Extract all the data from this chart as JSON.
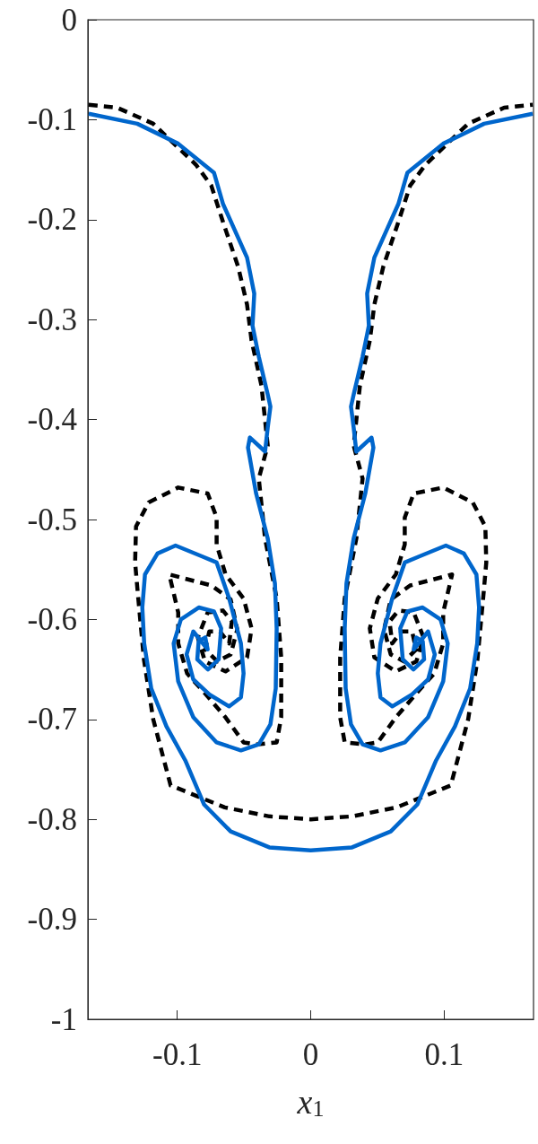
{
  "chart_data": {
    "type": "line",
    "xlabel": "x$_{1}$",
    "xlim": [
      -0.167,
      0.167
    ],
    "xticks": [
      -0.1,
      0,
      0.1
    ],
    "ylim": [
      -1,
      0
    ],
    "yticks": [
      -1,
      -0.9,
      -0.8,
      -0.7,
      -0.6,
      -0.5,
      -0.4,
      -0.3,
      -0.2,
      -0.1,
      0
    ],
    "grid": false,
    "marker": "none",
    "series": [
      {
        "color": "#0066cc",
        "line_style": "solid",
        "x": [
          -0.1664,
          -0.13,
          -0.0993,
          -0.0725,
          -0.0658,
          -0.0477,
          -0.0423,
          -0.0436,
          -0.0389,
          -0.0322,
          -0.0302,
          -0.0322,
          -0.0342,
          -0.0456,
          -0.047,
          -0.0409,
          -0.0322,
          -0.0268,
          -0.0255,
          -0.0262,
          -0.0302,
          -0.0389,
          -0.0523,
          -0.0705,
          -0.0879,
          -0.0993,
          -0.1027,
          -0.0973,
          -0.0839,
          -0.0725,
          -0.0671,
          -0.069,
          -0.077,
          -0.085,
          -0.084,
          -0.079,
          -0.0772,
          -0.088,
          -0.093,
          -0.088,
          -0.076,
          -0.0611,
          -0.0523,
          -0.0503,
          -0.0523,
          -0.0611,
          -0.0705,
          -0.0812,
          -0.1013,
          -0.1148,
          -0.1242,
          -0.1262,
          -0.1248,
          -0.1195,
          -0.1081,
          -0.094,
          -0.08,
          -0.06,
          -0.031,
          0,
          0.031,
          0.06,
          0.08,
          0.094,
          0.1081,
          0.1195,
          0.1248,
          0.1262,
          0.1242,
          0.1148,
          0.1013,
          0.0812,
          0.0705,
          0.0611,
          0.0523,
          0.0503,
          0.0523,
          0.0611,
          0.076,
          0.088,
          0.093,
          0.088,
          0.0772,
          0.079,
          0.084,
          0.085,
          0.077,
          0.069,
          0.0671,
          0.0725,
          0.0839,
          0.0973,
          0.1027,
          0.0993,
          0.0879,
          0.0705,
          0.0523,
          0.0389,
          0.0302,
          0.0262,
          0.0255,
          0.0268,
          0.0322,
          0.0409,
          0.047,
          0.0456,
          0.0342,
          0.0322,
          0.0302,
          0.0322,
          0.0389,
          0.0436,
          0.0423,
          0.0477,
          0.0658,
          0.0725,
          0.0993,
          0.13,
          0.1664
        ],
        "values": [
          -0.094,
          -0.104,
          -0.124,
          -0.153,
          -0.184,
          -0.238,
          -0.274,
          -0.306,
          -0.337,
          -0.375,
          -0.387,
          -0.408,
          -0.432,
          -0.418,
          -0.428,
          -0.474,
          -0.519,
          -0.564,
          -0.609,
          -0.669,
          -0.705,
          -0.725,
          -0.731,
          -0.723,
          -0.698,
          -0.662,
          -0.624,
          -0.6,
          -0.588,
          -0.592,
          -0.609,
          -0.64,
          -0.65,
          -0.64,
          -0.622,
          -0.618,
          -0.63,
          -0.612,
          -0.635,
          -0.66,
          -0.675,
          -0.687,
          -0.678,
          -0.654,
          -0.624,
          -0.579,
          -0.543,
          -0.537,
          -0.526,
          -0.534,
          -0.555,
          -0.588,
          -0.624,
          -0.669,
          -0.707,
          -0.741,
          -0.785,
          -0.812,
          -0.828,
          -0.831,
          -0.828,
          -0.812,
          -0.785,
          -0.741,
          -0.707,
          -0.669,
          -0.624,
          -0.588,
          -0.555,
          -0.534,
          -0.526,
          -0.537,
          -0.543,
          -0.579,
          -0.624,
          -0.654,
          -0.678,
          -0.687,
          -0.675,
          -0.66,
          -0.635,
          -0.612,
          -0.63,
          -0.618,
          -0.622,
          -0.64,
          -0.65,
          -0.64,
          -0.609,
          -0.592,
          -0.588,
          -0.6,
          -0.624,
          -0.662,
          -0.698,
          -0.723,
          -0.731,
          -0.725,
          -0.705,
          -0.669,
          -0.609,
          -0.564,
          -0.519,
          -0.474,
          -0.428,
          -0.418,
          -0.432,
          -0.408,
          -0.387,
          -0.375,
          -0.337,
          -0.306,
          -0.274,
          -0.238,
          -0.184,
          -0.153,
          -0.124,
          -0.104,
          -0.094
        ]
      },
      {
        "color": "#000000",
        "line_style": "dashed",
        "x": [
          -0.1664,
          -0.145,
          -0.118,
          -0.086,
          -0.0745,
          -0.0658,
          -0.0544,
          -0.0477,
          -0.0443,
          -0.0369,
          -0.0322,
          -0.0389,
          -0.0342,
          -0.0255,
          -0.0221,
          -0.0221,
          -0.0255,
          -0.0409,
          -0.0503,
          -0.0638,
          -0.0792,
          -0.0926,
          -0.0993,
          -0.0993,
          -0.106,
          -0.0745,
          -0.06,
          -0.055,
          -0.06,
          -0.07,
          -0.079,
          -0.076,
          -0.068,
          -0.0611,
          -0.0591,
          -0.0658,
          -0.0772,
          -0.0846,
          -0.0792,
          -0.0638,
          -0.0477,
          -0.0443,
          -0.0503,
          -0.0638,
          -0.0705,
          -0.0705,
          -0.0772,
          -0.0993,
          -0.1215,
          -0.1309,
          -0.1316,
          -0.1295,
          -0.125,
          -0.118,
          -0.105,
          -0.0644,
          -0.031,
          0,
          0.031,
          0.0644,
          0.105,
          0.118,
          0.125,
          0.1295,
          0.1316,
          0.1309,
          0.1215,
          0.0993,
          0.0772,
          0.0705,
          0.0705,
          0.0638,
          0.0503,
          0.0443,
          0.0477,
          0.0638,
          0.0792,
          0.0846,
          0.0772,
          0.0658,
          0.0591,
          0.0611,
          0.068,
          0.076,
          0.079,
          0.07,
          0.06,
          0.055,
          0.06,
          0.0745,
          0.106,
          0.0993,
          0.0993,
          0.0926,
          0.0792,
          0.0638,
          0.0503,
          0.0409,
          0.0255,
          0.0221,
          0.0221,
          0.0255,
          0.0342,
          0.0389,
          0.0322,
          0.0369,
          0.0443,
          0.0477,
          0.0544,
          0.0658,
          0.0745,
          0.086,
          0.118,
          0.145,
          0.1664
        ],
        "values": [
          -0.085,
          -0.088,
          -0.104,
          -0.145,
          -0.166,
          -0.202,
          -0.247,
          -0.285,
          -0.321,
          -0.366,
          -0.426,
          -0.459,
          -0.519,
          -0.579,
          -0.638,
          -0.698,
          -0.723,
          -0.725,
          -0.723,
          -0.698,
          -0.674,
          -0.654,
          -0.624,
          -0.593,
          -0.555,
          -0.566,
          -0.58,
          -0.61,
          -0.635,
          -0.642,
          -0.63,
          -0.612,
          -0.612,
          -0.624,
          -0.602,
          -0.591,
          -0.593,
          -0.618,
          -0.642,
          -0.652,
          -0.638,
          -0.609,
          -0.579,
          -0.555,
          -0.525,
          -0.498,
          -0.474,
          -0.468,
          -0.483,
          -0.507,
          -0.543,
          -0.575,
          -0.64,
          -0.7,
          -0.766,
          -0.788,
          -0.797,
          -0.8,
          -0.797,
          -0.788,
          -0.766,
          -0.7,
          -0.64,
          -0.575,
          -0.543,
          -0.507,
          -0.483,
          -0.468,
          -0.474,
          -0.498,
          -0.525,
          -0.555,
          -0.579,
          -0.609,
          -0.638,
          -0.652,
          -0.642,
          -0.618,
          -0.593,
          -0.591,
          -0.602,
          -0.624,
          -0.612,
          -0.612,
          -0.63,
          -0.642,
          -0.635,
          -0.61,
          -0.58,
          -0.566,
          -0.555,
          -0.593,
          -0.624,
          -0.654,
          -0.674,
          -0.698,
          -0.723,
          -0.725,
          -0.723,
          -0.698,
          -0.638,
          -0.579,
          -0.519,
          -0.459,
          -0.426,
          -0.366,
          -0.321,
          -0.285,
          -0.247,
          -0.202,
          -0.166,
          -0.145,
          -0.104,
          -0.088,
          -0.085
        ]
      }
    ]
  }
}
